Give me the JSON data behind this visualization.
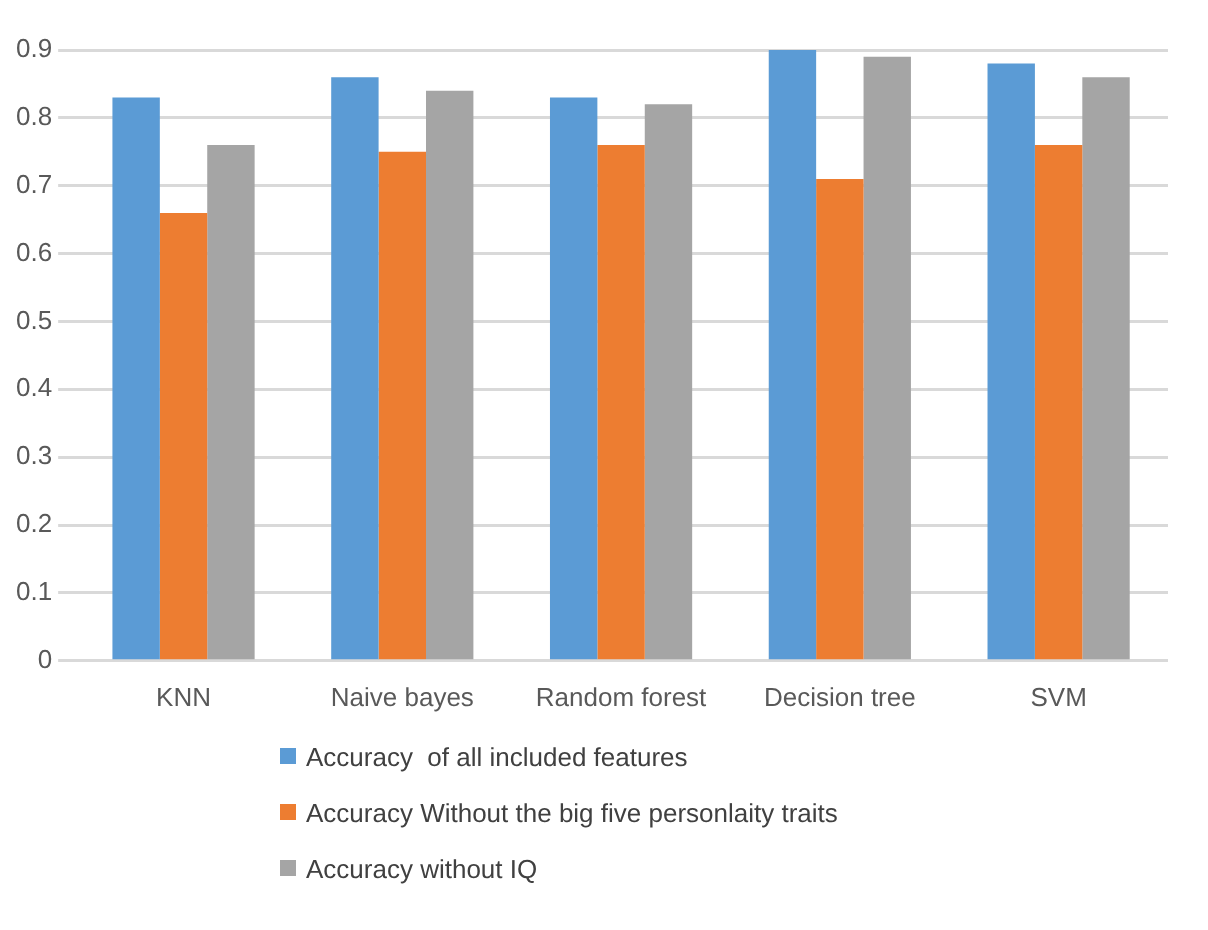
{
  "chart_data": {
    "type": "bar",
    "categories": [
      "KNN",
      "Naive bayes",
      "Random forest",
      "Decision tree",
      "SVM"
    ],
    "series": [
      {
        "name": "Accuracy  of all included features",
        "color": "#5b9bd5",
        "values": [
          0.83,
          0.86,
          0.83,
          0.9,
          0.88
        ]
      },
      {
        "name": "Accuracy Without the big five personlaity traits",
        "color": "#ed7d31",
        "values": [
          0.66,
          0.75,
          0.76,
          0.71,
          0.76
        ]
      },
      {
        "name": "Accuracy without IQ",
        "color": "#a5a5a5",
        "values": [
          0.76,
          0.84,
          0.82,
          0.89,
          0.86
        ]
      }
    ],
    "ylim": [
      0,
      0.9
    ],
    "yticks": [
      0,
      0.1,
      0.2,
      0.3,
      0.4,
      0.5,
      0.6,
      0.7,
      0.8,
      0.9
    ],
    "grid": "y",
    "legend": "bottom"
  }
}
